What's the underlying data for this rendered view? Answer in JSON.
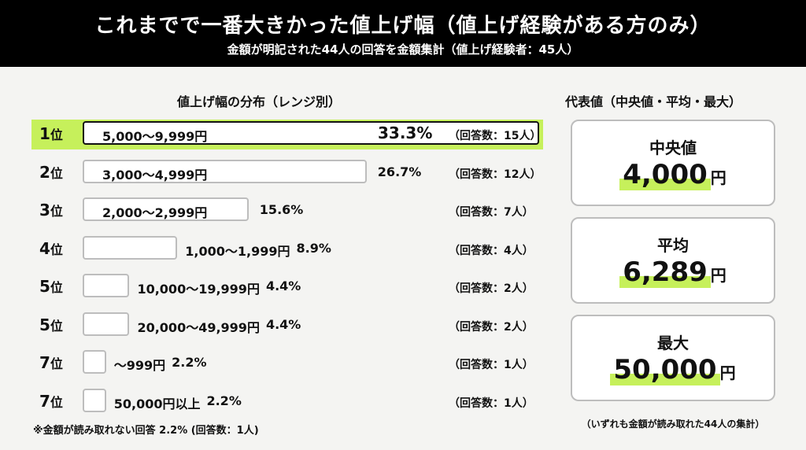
{
  "header": {
    "title": "これまでで一番大きかった値上げ幅（値上げ経験がある方のみ）",
    "subtitle": "金額が明記された44人の回答を金額集計（値上げ経験者：45人）"
  },
  "distribution_title": "値上げ幅の分布（レンジ別）",
  "chart_data": {
    "type": "bar",
    "title": "値上げ幅の分布（レンジ別）",
    "rank_suffix": "位",
    "categories": [
      "5,000〜9,999円",
      "3,000〜4,999円",
      "2,000〜2,999円",
      "1,000〜1,999円",
      "10,000〜19,999円",
      "20,000〜49,999円",
      "〜999円",
      "50,000円以上"
    ],
    "ranks": [
      "1",
      "2",
      "3",
      "4",
      "5",
      "5",
      "7",
      "7"
    ],
    "values": [
      33.3,
      26.7,
      15.6,
      8.9,
      4.4,
      4.4,
      2.2,
      2.2
    ],
    "value_labels": [
      "33.3%",
      "26.7%",
      "15.6%",
      "8.9%",
      "4.4%",
      "4.4%",
      "2.2%",
      "2.2%"
    ],
    "counts": [
      "（回答数：15人）",
      "（回答数：12人）",
      "（回答数：7人）",
      "（回答数：4人）",
      "（回答数：2人）",
      "（回答数：2人）",
      "（回答数：1人）",
      "（回答数：1人）"
    ],
    "unit": "%"
  },
  "note": "※金額が読み取れない回答 2.2% (回答数：1人)",
  "summary": {
    "title": "代表値（中央値・平均・最大）",
    "cards": [
      {
        "label": "中央値",
        "value": "4,000",
        "unit": "円"
      },
      {
        "label": "平均",
        "value": "6,289",
        "unit": "円"
      },
      {
        "label": "最大",
        "value": "50,000",
        "unit": "円"
      }
    ],
    "footnote": "（いずれも金額が読み取れた44人の集計）"
  },
  "colors": {
    "accent": "#c6f05b",
    "header_bg": "#000000",
    "bar_border": "#bdbdbd"
  }
}
